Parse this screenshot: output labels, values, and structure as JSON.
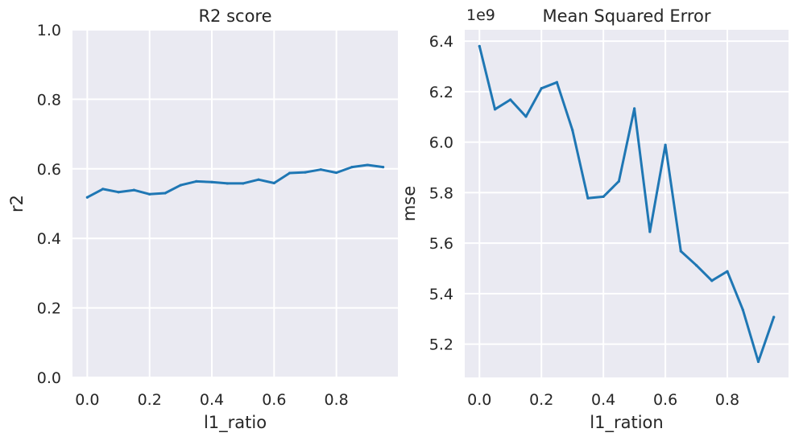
{
  "chart_data": [
    {
      "type": "line",
      "title": "R2 score",
      "xlabel": "l1_ratio",
      "ylabel": "r2",
      "xlim": [
        -0.0475,
        0.9975
      ],
      "ylim": [
        0.0,
        1.0
      ],
      "x_ticks": [
        "0.0",
        "0.2",
        "0.4",
        "0.6",
        "0.8"
      ],
      "y_ticks": [
        "0.0",
        "0.2",
        "0.4",
        "0.6",
        "0.8",
        "1.0"
      ],
      "grid": true,
      "x": [
        0.0,
        0.05,
        0.1,
        0.15,
        0.2,
        0.25,
        0.3,
        0.35,
        0.4,
        0.45,
        0.5,
        0.55,
        0.6,
        0.65,
        0.7,
        0.75,
        0.8,
        0.85,
        0.9,
        0.95
      ],
      "series": [
        {
          "values": [
            0.518,
            0.542,
            0.533,
            0.539,
            0.527,
            0.53,
            0.553,
            0.564,
            0.562,
            0.558,
            0.558,
            0.569,
            0.559,
            0.588,
            0.59,
            0.598,
            0.589,
            0.605,
            0.611,
            0.605
          ],
          "color": "#1f77b4"
        }
      ]
    },
    {
      "type": "line",
      "title": "Mean Squared Error",
      "xlabel": "l1_ration",
      "ylabel": "mse",
      "y_offset_label": "1e9",
      "xlim": [
        -0.0475,
        0.9975
      ],
      "ylim": [
        5.068,
        6.445
      ],
      "x_ticks": [
        "0.0",
        "0.2",
        "0.4",
        "0.6",
        "0.8"
      ],
      "y_ticks": [
        "5.2",
        "5.4",
        "5.6",
        "5.8",
        "6.0",
        "6.2",
        "6.4"
      ],
      "grid": true,
      "x": [
        0.0,
        0.05,
        0.1,
        0.15,
        0.2,
        0.25,
        0.3,
        0.35,
        0.4,
        0.45,
        0.5,
        0.55,
        0.6,
        0.65,
        0.7,
        0.75,
        0.8,
        0.85,
        0.9,
        0.95
      ],
      "series": [
        {
          "values": [
            6.38,
            6.13,
            6.168,
            6.101,
            6.213,
            6.237,
            6.048,
            5.778,
            5.784,
            5.845,
            6.133,
            5.645,
            5.989,
            5.568,
            5.512,
            5.451,
            5.488,
            5.336,
            5.13,
            5.307
          ],
          "color": "#1f77b4"
        }
      ]
    }
  ]
}
